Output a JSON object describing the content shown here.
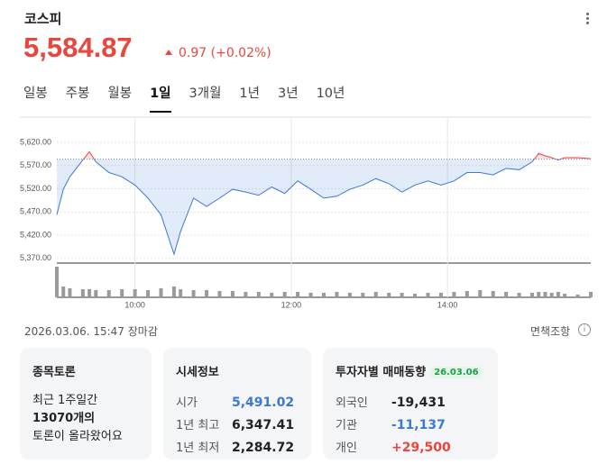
{
  "header": {
    "title": "코스피",
    "price": "5,584.87",
    "change": "0.97 (+0.02%)"
  },
  "tabs": {
    "items": [
      "일봉",
      "주봉",
      "월봉",
      "1일",
      "3개월",
      "1년",
      "3년",
      "10년"
    ],
    "active": 3
  },
  "chart_data": [
    {
      "type": "line",
      "x": [
        "09:00",
        "09:05",
        "09:10",
        "09:20",
        "09:25",
        "09:30",
        "09:40",
        "09:50",
        "10:00",
        "10:10",
        "10:20",
        "10:30",
        "10:35",
        "10:45",
        "10:55",
        "11:05",
        "11:15",
        "11:25",
        "11:35",
        "11:45",
        "11:55",
        "12:05",
        "12:15",
        "12:25",
        "12:35",
        "12:45",
        "12:55",
        "13:05",
        "13:15",
        "13:25",
        "13:35",
        "13:45",
        "13:55",
        "14:05",
        "14:15",
        "14:25",
        "14:35",
        "14:45",
        "14:55",
        "15:05",
        "15:10",
        "15:15",
        "15:20",
        "15:25",
        "15:30",
        "15:40",
        "15:50"
      ],
      "values": [
        5464,
        5519,
        5546,
        5582,
        5600,
        5578,
        5555,
        5546,
        5528,
        5500,
        5464,
        5379,
        5428,
        5500,
        5482,
        5500,
        5519,
        5513,
        5506,
        5524,
        5510,
        5537,
        5519,
        5500,
        5504,
        5519,
        5528,
        5542,
        5531,
        5513,
        5528,
        5537,
        5528,
        5537,
        5555,
        5555,
        5550,
        5564,
        5561,
        5578,
        5596,
        5591,
        5587,
        5582,
        5587,
        5587,
        5584.87
      ],
      "baseline": 5583.9,
      "color_up": "#e8463f",
      "color_down": "#3b78d8",
      "xlim": [
        "09:00",
        "15:50"
      ],
      "xticks": [
        "10:00",
        "12:00",
        "14:00"
      ],
      "ylim": [
        5360,
        5655
      ],
      "yticks": [
        {
          "value": 5370,
          "label": "5,370.00"
        },
        {
          "value": 5420,
          "label": "5,420.00"
        },
        {
          "value": 5470,
          "label": "5,470.00"
        },
        {
          "value": 5520,
          "label": "5,520.00"
        },
        {
          "value": 5570,
          "label": "5,570.00"
        },
        {
          "value": 5620,
          "label": "5,620.00"
        }
      ],
      "grid": true
    },
    {
      "type": "bar",
      "x": [
        "09:00",
        "09:05",
        "09:10",
        "09:20",
        "09:25",
        "09:30",
        "09:40",
        "09:50",
        "10:00",
        "10:10",
        "10:20",
        "10:30",
        "10:35",
        "10:45",
        "10:55",
        "11:05",
        "11:15",
        "11:25",
        "11:35",
        "11:45",
        "11:55",
        "12:05",
        "12:15",
        "12:25",
        "12:35",
        "12:45",
        "12:55",
        "13:05",
        "13:15",
        "13:25",
        "13:35",
        "13:45",
        "13:55",
        "14:05",
        "14:15",
        "14:25",
        "14:35",
        "14:45",
        "14:55",
        "15:05",
        "15:10",
        "15:15",
        "15:20",
        "15:25",
        "15:30",
        "15:40",
        "15:50"
      ],
      "values": [
        34,
        12,
        10,
        9,
        9,
        8,
        8,
        9,
        9,
        8,
        10,
        12,
        9,
        8,
        8,
        7,
        7,
        6,
        6,
        5,
        6,
        6,
        5,
        5,
        6,
        5,
        5,
        6,
        5,
        5,
        4,
        5,
        5,
        6,
        7,
        8,
        7,
        6,
        5,
        5,
        6,
        6,
        5,
        6,
        4,
        3,
        6
      ],
      "color": "#9a9a9a"
    }
  ],
  "footer": {
    "timestamp": "2026.03.06. 15:47 장마감",
    "disclaimer": "면책조항"
  },
  "cards": [
    {
      "title": "종목토론",
      "lines": [
        "최근 1주일간",
        "13070개의",
        "토론이 올라왔어요"
      ]
    },
    {
      "title": "시세정보",
      "rows": [
        [
          "시가",
          "5,491.02"
        ],
        [
          "1년 최고",
          "6,347.41"
        ],
        [
          "1년 최저",
          "2,284.72"
        ]
      ]
    },
    {
      "title": "투자자별 매매동향",
      "badge": "26.03.06",
      "rows": [
        [
          "외국인",
          "-19,431"
        ],
        [
          "기관",
          "-11,137"
        ],
        [
          "개인",
          "+29,500"
        ]
      ]
    }
  ]
}
